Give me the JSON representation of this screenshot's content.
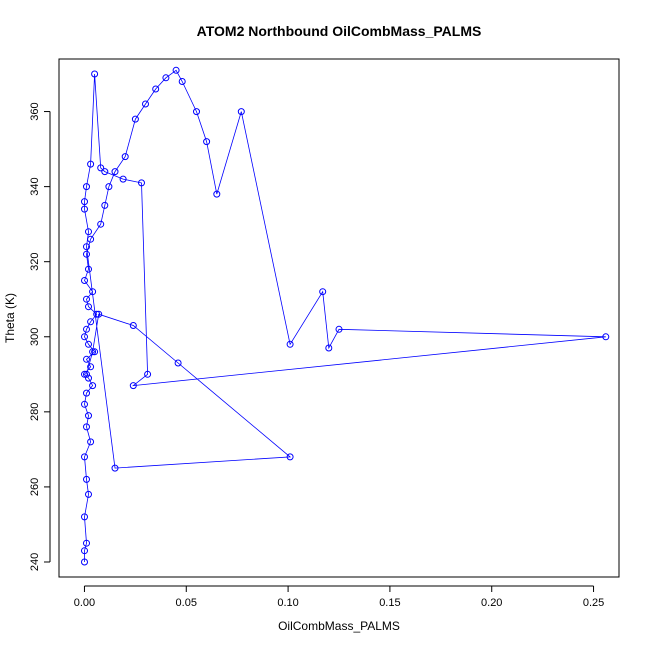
{
  "chart_data": {
    "type": "scatter",
    "title": "ATOM2 Northbound OilCombMass_PALMS",
    "xlabel": "OilCombMass_PALMS",
    "ylabel": "Theta (K)",
    "xlim": [
      -0.0125,
      0.2625
    ],
    "ylim": [
      236,
      374
    ],
    "x_ticks": [
      0.0,
      0.05,
      0.1,
      0.15,
      0.2,
      0.25
    ],
    "x_tick_labels": [
      "0.00",
      "0.05",
      "0.10",
      "0.15",
      "0.20",
      "0.25"
    ],
    "y_ticks": [
      240,
      260,
      280,
      300,
      320,
      340,
      360
    ],
    "y_tick_labels": [
      "240",
      "260",
      "280",
      "300",
      "320",
      "340",
      "360"
    ],
    "grid": false,
    "legend": "none",
    "marker": "open-circle",
    "connected": true,
    "series_color": "#0000ff",
    "series": [
      {
        "x": [
          0.0,
          0.0,
          0.001,
          0.0,
          0.002,
          0.001,
          0.0,
          0.003,
          0.001,
          0.002,
          0.0,
          0.001,
          0.004,
          0.002,
          0.0,
          0.003,
          0.001,
          0.005,
          0.002,
          0.0,
          0.001,
          0.003,
          0.006,
          0.002,
          0.001,
          0.004,
          0.0,
          0.002,
          0.001,
          0.003,
          0.008,
          0.01,
          0.012,
          0.015,
          0.02,
          0.025,
          0.03,
          0.035,
          0.04,
          0.045,
          0.048,
          0.055,
          0.06,
          0.065,
          0.077,
          0.101,
          0.117,
          0.12,
          0.125,
          0.256,
          0.024,
          0.031,
          0.028,
          0.019,
          0.01,
          0.008,
          0.005,
          0.003,
          0.001,
          0.0,
          0.0,
          0.002,
          0.001,
          0.015,
          0.101,
          0.046,
          0.024,
          0.007,
          0.004,
          0.001
        ],
        "y": [
          240,
          243,
          245,
          252,
          258,
          262,
          268,
          272,
          276,
          279,
          282,
          285,
          287,
          289,
          290,
          292,
          294,
          296,
          298,
          300,
          302,
          304,
          306,
          308,
          310,
          312,
          315,
          318,
          322,
          326,
          330,
          335,
          340,
          344,
          348,
          358,
          362,
          366,
          369,
          371,
          368,
          360,
          352,
          338,
          360,
          298,
          312,
          297,
          302,
          300,
          287,
          290,
          341,
          342,
          344,
          345,
          370,
          346,
          340,
          336,
          334,
          328,
          324,
          265,
          268,
          293,
          303,
          306,
          296,
          290
        ]
      }
    ]
  }
}
